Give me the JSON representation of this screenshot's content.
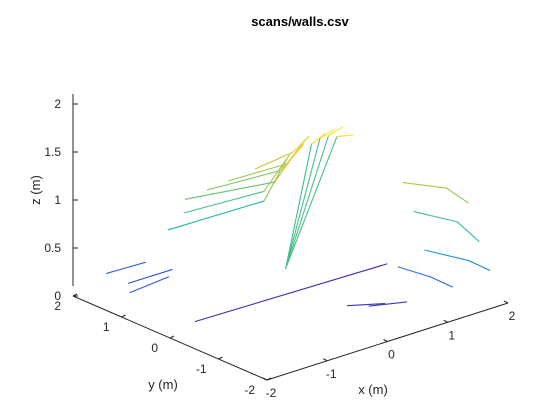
{
  "chart_data": {
    "type": "line3d",
    "title": "scans/walls.csv",
    "xlabel": "x (m)",
    "ylabel": "y (m)",
    "zlabel": "z (m)",
    "xlim": [
      -2,
      2
    ],
    "ylim": [
      -2,
      2
    ],
    "zlim": [
      0,
      2
    ],
    "x_ticks": [
      "-2",
      "-1",
      "0",
      "1",
      "2"
    ],
    "y_ticks": [
      "-2",
      "-1",
      "0",
      "1",
      "2"
    ],
    "z_ticks": [
      "0",
      "0.5",
      "1",
      "1.5",
      "2"
    ],
    "grid": false,
    "legend": "none",
    "colormap": [
      "#3e26a8",
      "#2f64f3",
      "#1a9bd6",
      "#25b8a4",
      "#74c863",
      "#d9c238",
      "#f9e721"
    ],
    "sensor_origin": [
      0,
      0,
      0
    ],
    "series": [
      {
        "points": [
          [
            -1.5,
            0.1,
            0.05
          ],
          [
            1.6,
            0.0,
            0.05
          ]
        ]
      },
      {
        "points": [
          [
            -0.9,
            1.4,
            0.6
          ],
          [
            -0.2,
            0.3,
            1.0
          ],
          [
            0.1,
            0.2,
            1.4
          ]
        ]
      },
      {
        "points": [
          [
            -0.8,
            1.2,
            0.8
          ],
          [
            -0.2,
            0.3,
            1.1
          ],
          [
            0.1,
            0.15,
            1.45
          ]
        ]
      },
      {
        "points": [
          [
            -0.7,
            1.3,
            0.9
          ],
          [
            -0.1,
            0.2,
            1.2
          ],
          [
            0.2,
            0.1,
            1.5
          ]
        ]
      },
      {
        "points": [
          [
            -0.5,
            1.1,
            1.0
          ],
          [
            0.0,
            0.2,
            1.3
          ],
          [
            0.25,
            0.05,
            1.55
          ]
        ]
      },
      {
        "points": [
          [
            -0.3,
            0.9,
            1.1
          ],
          [
            0.1,
            0.2,
            1.35
          ],
          [
            0.3,
            0.05,
            1.6
          ]
        ]
      },
      {
        "points": [
          [
            -0.1,
            0.6,
            1.25
          ],
          [
            0.2,
            0.2,
            1.45
          ],
          [
            0.35,
            0.05,
            1.62
          ]
        ]
      },
      {
        "points": [
          [
            0.0,
            0.1,
            0.3
          ],
          [
            0.35,
            0.0,
            1.55
          ],
          [
            0.5,
            -0.1,
            1.65
          ]
        ]
      },
      {
        "points": [
          [
            0.0,
            0.1,
            0.3
          ],
          [
            0.45,
            -0.05,
            1.6
          ],
          [
            0.6,
            -0.15,
            1.68
          ]
        ]
      },
      {
        "points": [
          [
            0.0,
            0.1,
            0.3
          ],
          [
            0.55,
            -0.1,
            1.62
          ],
          [
            0.7,
            -0.2,
            1.7
          ]
        ]
      },
      {
        "points": [
          [
            0.0,
            0.1,
            0.3
          ],
          [
            0.65,
            -0.15,
            1.6
          ],
          [
            0.8,
            -0.3,
            1.62
          ]
        ]
      },
      {
        "points": [
          [
            0.9,
            -1.2,
            1.3
          ],
          [
            1.3,
            -1.6,
            1.25
          ],
          [
            1.5,
            -1.8,
            1.1
          ]
        ]
      },
      {
        "points": [
          [
            1.0,
            -1.3,
            1.0
          ],
          [
            1.4,
            -1.7,
            0.9
          ],
          [
            1.6,
            -1.9,
            0.7
          ]
        ]
      },
      {
        "points": [
          [
            1.1,
            -1.4,
            0.6
          ],
          [
            1.5,
            -1.8,
            0.5
          ],
          [
            1.7,
            -2.0,
            0.4
          ]
        ]
      },
      {
        "points": [
          [
            0.9,
            -1.1,
            0.4
          ],
          [
            1.2,
            -1.4,
            0.3
          ],
          [
            1.4,
            -1.6,
            0.2
          ]
        ]
      },
      {
        "points": [
          [
            -1.6,
            1.8,
            0.2
          ],
          [
            -1.2,
            1.5,
            0.3
          ]
        ]
      },
      {
        "points": [
          [
            -1.4,
            1.6,
            0.1
          ],
          [
            -1.0,
            1.2,
            0.25
          ]
        ]
      },
      {
        "points": [
          [
            -1.7,
            1.2,
            0.15
          ],
          [
            -1.3,
            0.9,
            0.3
          ]
        ]
      },
      {
        "points": [
          [
            0.3,
            -0.8,
            0.05
          ],
          [
            0.6,
            -1.2,
            0.1
          ]
        ]
      },
      {
        "points": [
          [
            0.5,
            -1.0,
            0.05
          ],
          [
            0.8,
            -1.4,
            0.12
          ]
        ]
      }
    ]
  }
}
